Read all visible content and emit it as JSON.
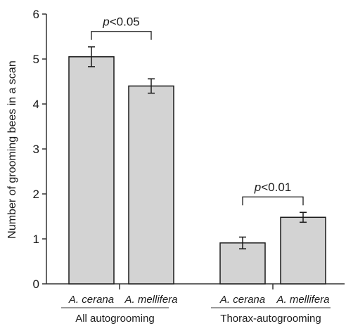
{
  "chart_data": {
    "type": "bar",
    "ylabel": "Number of grooming bees in a scan",
    "ylim": [
      0,
      6
    ],
    "yticks": [
      "0",
      "1",
      "2",
      "3",
      "4",
      "5",
      "6"
    ],
    "bar_color": "#d3d3d3",
    "groups": [
      {
        "name": "All autogrooming",
        "bars": [
          {
            "category": "A. cerana",
            "value": 5.05,
            "err": 0.22
          },
          {
            "category": "A. mellifera",
            "value": 4.4,
            "err": 0.16
          }
        ],
        "significance": "<0.05"
      },
      {
        "name": "Thorax-autogrooming",
        "bars": [
          {
            "category": "A. cerana",
            "value": 0.91,
            "err": 0.13
          },
          {
            "category": "A. mellifera",
            "value": 1.48,
            "err": 0.11
          }
        ],
        "significance": "<0.01"
      }
    ]
  }
}
